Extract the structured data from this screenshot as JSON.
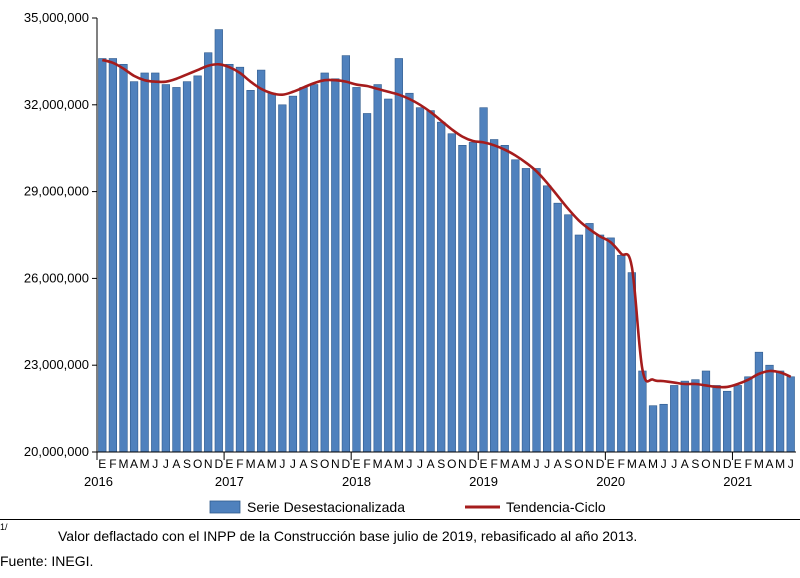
{
  "chart_data": {
    "type": "bar",
    "y_ticks": [
      "20,000,000",
      "23,000,000",
      "26,000,000",
      "29,000,000",
      "32,000,000",
      "35,000,000"
    ],
    "y_tick_values": [
      20000000,
      23000000,
      26000000,
      29000000,
      32000000,
      35000000
    ],
    "ylim": [
      20000000,
      35000000
    ],
    "grid": false,
    "month_labels": [
      "E",
      "F",
      "M",
      "A",
      "M",
      "J",
      "J",
      "A",
      "S",
      "O",
      "N",
      "D"
    ],
    "years": [
      "2016",
      "2017",
      "2018",
      "2019",
      "2020",
      "2021"
    ],
    "series": [
      {
        "name": "Serie Desestacionalizada",
        "color": "#4f81bd",
        "values": [
          33600000,
          33600000,
          33400000,
          32800000,
          33100000,
          33100000,
          32700000,
          32600000,
          32800000,
          33000000,
          33800000,
          34600000,
          33400000,
          33300000,
          32500000,
          33200000,
          32400000,
          32000000,
          32300000,
          32600000,
          32700000,
          33100000,
          32900000,
          33700000,
          32600000,
          31700000,
          32700000,
          32200000,
          33600000,
          32400000,
          31900000,
          31800000,
          31400000,
          31000000,
          30600000,
          30700000,
          31900000,
          30800000,
          30600000,
          30100000,
          29800000,
          29800000,
          29200000,
          28600000,
          28200000,
          27500000,
          27900000,
          27500000,
          27400000,
          26800000,
          26200000,
          22800000,
          21600000,
          21650000,
          22300000,
          22450000,
          22500000,
          22800000,
          22300000,
          22100000,
          22300000,
          22600000,
          23450000,
          23000000,
          22800000,
          22600000
        ]
      },
      {
        "name": "Tendencia-Ciclo",
        "color": "#a51c1c",
        "values": [
          33550000,
          33450000,
          33250000,
          33000000,
          32850000,
          32800000,
          32800000,
          32900000,
          33050000,
          33200000,
          33350000,
          33400000,
          33300000,
          33100000,
          32800000,
          32550000,
          32400000,
          32350000,
          32450000,
          32600000,
          32750000,
          32850000,
          32850000,
          32800000,
          32700000,
          32650000,
          32550000,
          32450000,
          32350000,
          32200000,
          32000000,
          31750000,
          31450000,
          31150000,
          30900000,
          30750000,
          30700000,
          30600000,
          30450000,
          30250000,
          30000000,
          29700000,
          29300000,
          28850000,
          28400000,
          28000000,
          27700000,
          27450000,
          27250000,
          26850000,
          26400000,
          22850000,
          22500000,
          22450000,
          22400000,
          22350000,
          22350000,
          22300000,
          22250000,
          22250000,
          22350000,
          22500000,
          22700000,
          22800000,
          22750000,
          22600000
        ]
      }
    ]
  },
  "footnote": {
    "marker": "1/",
    "text": "Valor deflactado con el INPP de la Construcción base julio de 2019, rebasificado al año 2013."
  },
  "source": "Fuente: INEGI."
}
